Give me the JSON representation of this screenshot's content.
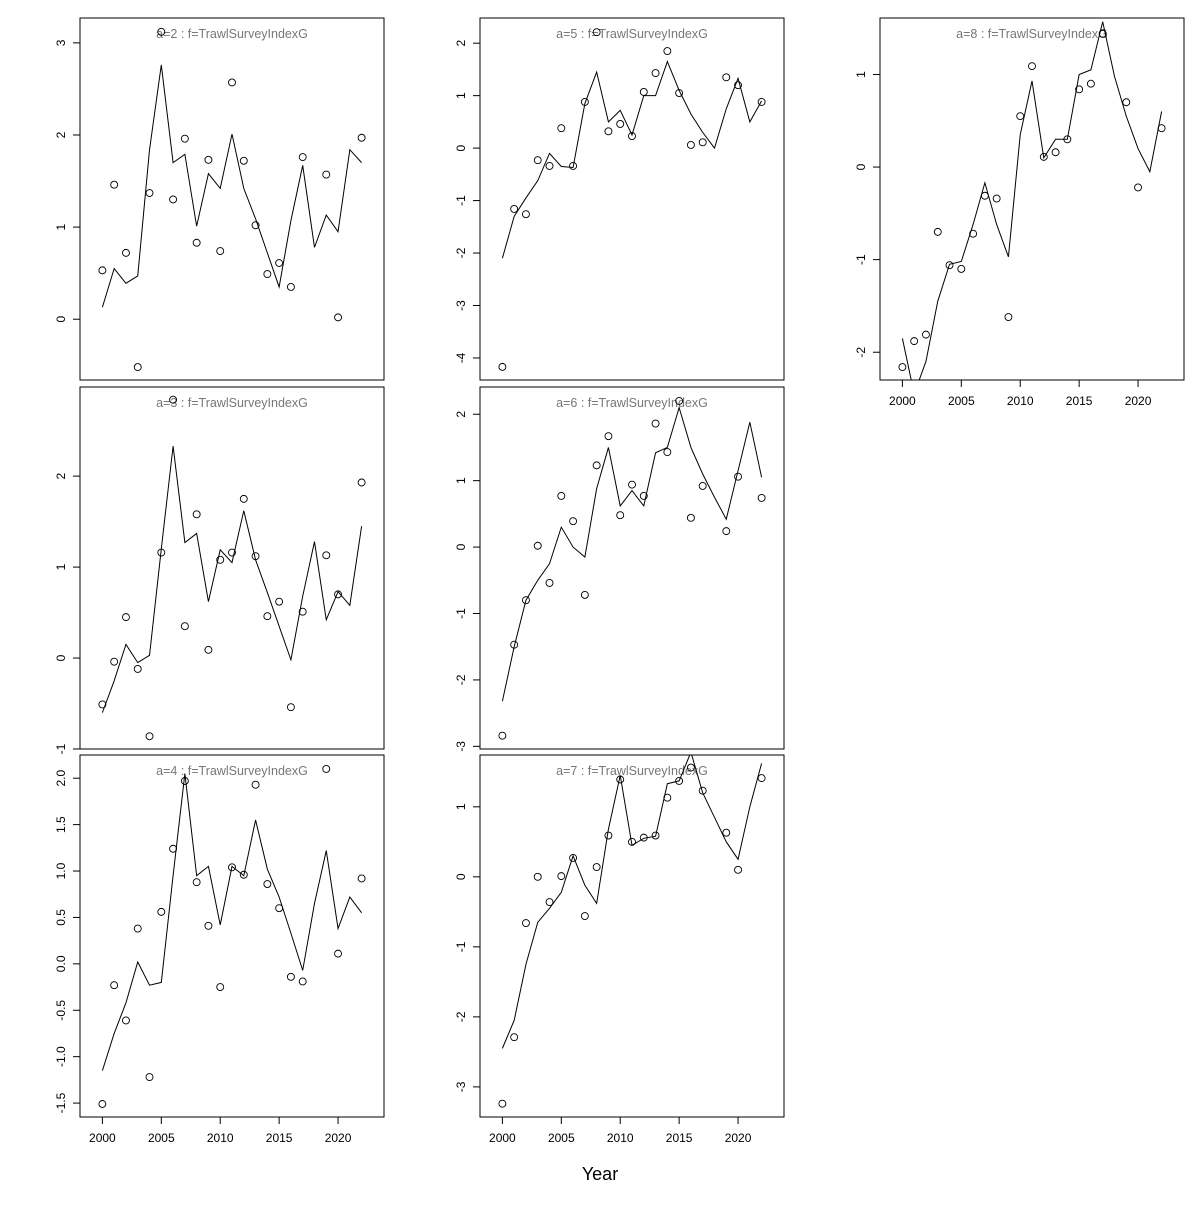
{
  "xlabel": "Year",
  "chart_data": [
    {
      "type": "line",
      "title": "a=2  :  f=TrawlSurveyIndexG",
      "color": "#000000",
      "x": [
        2000,
        2001,
        2002,
        2003,
        2004,
        2005,
        2006,
        2007,
        2008,
        2009,
        2010,
        2011,
        2012,
        2013,
        2014,
        2015,
        2016,
        2017,
        2018,
        2019,
        2020,
        2021,
        2022
      ],
      "series": [
        {
          "style": "points",
          "values": [
            0.53,
            1.46,
            0.72,
            -0.52,
            1.37,
            3.12,
            1.3,
            1.96,
            0.83,
            1.73,
            0.74,
            2.57,
            1.72,
            1.02,
            0.49,
            0.61,
            0.35,
            1.76,
            null,
            1.57,
            0.02,
            null,
            1.97
          ]
        },
        {
          "style": "line",
          "values": [
            0.13,
            0.55,
            0.39,
            0.47,
            1.84,
            2.76,
            1.7,
            1.79,
            1.01,
            1.58,
            1.42,
            2.01,
            1.42,
            1.09,
            0.72,
            0.35,
            1.07,
            1.67,
            0.78,
            1.13,
            0.95,
            1.84,
            1.7
          ]
        }
      ],
      "xlim": [
        1998.1,
        2023.9
      ],
      "ylim": [
        -0.66,
        3.27
      ],
      "yticks": [
        0,
        1,
        2,
        3
      ]
    },
    {
      "type": "line",
      "title": "a=3  :  f=TrawlSurveyIndexG",
      "color": "#000000",
      "x": [
        2000,
        2001,
        2002,
        2003,
        2004,
        2005,
        2006,
        2007,
        2008,
        2009,
        2010,
        2011,
        2012,
        2013,
        2014,
        2015,
        2016,
        2017,
        2018,
        2019,
        2020,
        2021,
        2022
      ],
      "series": [
        {
          "style": "points",
          "values": [
            -0.51,
            -0.04,
            0.45,
            -0.12,
            -0.86,
            1.16,
            2.84,
            0.35,
            1.58,
            0.09,
            1.08,
            1.16,
            1.75,
            1.12,
            0.46,
            0.62,
            -0.54,
            0.51,
            null,
            1.13,
            0.7,
            null,
            1.93
          ]
        },
        {
          "style": "line",
          "values": [
            -0.6,
            -0.25,
            0.15,
            -0.05,
            0.03,
            1.2,
            2.33,
            1.27,
            1.37,
            0.62,
            1.19,
            1.05,
            1.62,
            1.08,
            0.72,
            0.35,
            -0.02,
            0.68,
            1.28,
            0.42,
            0.73,
            0.58,
            1.45
          ]
        }
      ],
      "xlim": [
        1998.1,
        2023.9
      ],
      "ylim": [
        -1.0,
        2.98
      ],
      "yticks": [
        -1,
        0,
        1,
        2
      ]
    },
    {
      "type": "line",
      "title": "a=4  :  f=TrawlSurveyIndexG",
      "color": "#000000",
      "x": [
        2000,
        2001,
        2002,
        2003,
        2004,
        2005,
        2006,
        2007,
        2008,
        2009,
        2010,
        2011,
        2012,
        2013,
        2014,
        2015,
        2016,
        2017,
        2018,
        2019,
        2020,
        2021,
        2022
      ],
      "series": [
        {
          "style": "points",
          "values": [
            -1.51,
            -0.23,
            -0.61,
            0.38,
            -1.22,
            0.56,
            1.24,
            1.97,
            0.88,
            0.41,
            -0.25,
            1.04,
            0.96,
            1.93,
            0.86,
            0.6,
            -0.14,
            -0.19,
            null,
            2.1,
            0.11,
            null,
            0.92
          ]
        },
        {
          "style": "line",
          "values": [
            -1.15,
            -0.75,
            -0.42,
            0.02,
            -0.23,
            -0.2,
            0.95,
            2.05,
            0.95,
            1.05,
            0.42,
            1.05,
            0.95,
            1.55,
            1.02,
            0.72,
            0.33,
            -0.07,
            0.65,
            1.22,
            0.38,
            0.72,
            0.55
          ]
        }
      ],
      "xlim": [
        1998.1,
        2023.9
      ],
      "ylim": [
        -1.65,
        2.25
      ],
      "yticks": [
        -1.5,
        {
          "value": -1,
          "label": "-1.0"
        },
        -0.5,
        {
          "value": 0,
          "label": "0.0"
        },
        0.5,
        {
          "value": 1,
          "label": "1.0"
        },
        1.5,
        {
          "value": 2,
          "label": "2.0"
        }
      ],
      "xticks": [
        2000,
        2005,
        2010,
        2015,
        2020
      ]
    },
    {
      "type": "line",
      "title": "a=5  :  f=TrawlSurveyIndexG",
      "color": "#000000",
      "x": [
        2000,
        2001,
        2002,
        2003,
        2004,
        2005,
        2006,
        2007,
        2008,
        2009,
        2010,
        2011,
        2012,
        2013,
        2014,
        2015,
        2016,
        2017,
        2018,
        2019,
        2020,
        2021,
        2022
      ],
      "series": [
        {
          "style": "points",
          "values": [
            -4.17,
            -1.16,
            -1.26,
            -0.23,
            -0.34,
            0.38,
            -0.34,
            0.88,
            2.21,
            0.32,
            0.46,
            0.23,
            1.07,
            1.43,
            1.85,
            1.05,
            0.06,
            0.11,
            null,
            1.35,
            1.2,
            null,
            0.88
          ]
        },
        {
          "style": "line",
          "values": [
            -2.1,
            -1.3,
            -0.95,
            -0.62,
            -0.1,
            -0.35,
            -0.37,
            0.85,
            1.45,
            0.5,
            0.72,
            0.25,
            1.0,
            1.0,
            1.65,
            1.1,
            0.65,
            0.3,
            0.0,
            0.75,
            1.33,
            0.5,
            0.9
          ]
        }
      ],
      "xlim": [
        1998.1,
        2023.9
      ],
      "ylim": [
        -4.42,
        2.48
      ],
      "yticks": [
        -4,
        -3,
        -2,
        -1,
        0,
        1,
        2
      ]
    },
    {
      "type": "line",
      "title": "a=6  :  f=TrawlSurveyIndexG",
      "color": "#000000",
      "x": [
        2000,
        2001,
        2002,
        2003,
        2004,
        2005,
        2006,
        2007,
        2008,
        2009,
        2010,
        2011,
        2012,
        2013,
        2014,
        2015,
        2016,
        2017,
        2018,
        2019,
        2020,
        2021,
        2022
      ],
      "series": [
        {
          "style": "points",
          "values": [
            -2.84,
            -1.47,
            -0.8,
            0.02,
            -0.54,
            0.77,
            0.39,
            -0.72,
            1.23,
            1.67,
            0.48,
            0.94,
            0.77,
            1.86,
            1.43,
            2.2,
            0.44,
            0.92,
            null,
            0.24,
            1.06,
            null,
            0.74
          ]
        },
        {
          "style": "line",
          "values": [
            -2.32,
            -1.5,
            -0.8,
            -0.5,
            -0.25,
            0.3,
            0.0,
            -0.15,
            0.88,
            1.5,
            0.62,
            0.85,
            0.62,
            1.42,
            1.5,
            2.1,
            1.5,
            1.1,
            0.75,
            0.42,
            1.15,
            1.88,
            1.05
          ]
        }
      ],
      "xlim": [
        1998.1,
        2023.9
      ],
      "ylim": [
        -3.04,
        2.41
      ],
      "yticks": [
        -3,
        -2,
        -1,
        0,
        1,
        2
      ]
    },
    {
      "type": "line",
      "title": "a=7  :  f=TrawlSurveyIndexG",
      "color": "#000000",
      "x": [
        2000,
        2001,
        2002,
        2003,
        2004,
        2005,
        2006,
        2007,
        2008,
        2009,
        2010,
        2011,
        2012,
        2013,
        2014,
        2015,
        2016,
        2017,
        2018,
        2019,
        2020,
        2021,
        2022
      ],
      "series": [
        {
          "style": "points",
          "values": [
            -3.24,
            -2.29,
            -0.66,
            0.0,
            -0.36,
            0.01,
            0.27,
            -0.56,
            0.14,
            0.59,
            1.39,
            0.5,
            0.56,
            0.59,
            1.13,
            1.37,
            1.56,
            1.23,
            null,
            0.63,
            0.1,
            null,
            1.41
          ]
        },
        {
          "style": "line",
          "values": [
            -2.45,
            -2.05,
            -1.25,
            -0.65,
            -0.45,
            -0.22,
            0.3,
            -0.12,
            -0.38,
            0.68,
            1.45,
            0.45,
            0.55,
            0.58,
            1.33,
            1.37,
            1.78,
            1.2,
            0.85,
            0.5,
            0.25,
            1.0,
            1.62
          ]
        }
      ],
      "xlim": [
        1998.1,
        2023.9
      ],
      "ylim": [
        -3.43,
        1.74
      ],
      "yticks": [
        -3,
        -2,
        -1,
        0,
        1
      ],
      "xticks": [
        2000,
        2005,
        2010,
        2015,
        2020
      ]
    },
    {
      "type": "line",
      "title": "a=8  :  f=TrawlSurveyIndexG",
      "color": "#000000",
      "x": [
        2000,
        2001,
        2002,
        2003,
        2004,
        2005,
        2006,
        2007,
        2008,
        2009,
        2010,
        2011,
        2012,
        2013,
        2014,
        2015,
        2016,
        2017,
        2018,
        2019,
        2020,
        2021,
        2022
      ],
      "series": [
        {
          "style": "points",
          "values": [
            -2.16,
            -1.88,
            -1.81,
            -0.7,
            -1.06,
            -1.1,
            -0.72,
            -0.31,
            -0.34,
            -1.62,
            0.55,
            1.09,
            0.11,
            0.16,
            0.3,
            0.84,
            0.9,
            1.44,
            null,
            0.7,
            -0.22,
            null,
            0.42
          ]
        },
        {
          "style": "line",
          "values": [
            -1.85,
            -2.45,
            -2.1,
            -1.45,
            -1.05,
            -1.02,
            -0.62,
            -0.17,
            -0.62,
            -0.97,
            0.35,
            0.93,
            0.1,
            0.3,
            0.3,
            1.0,
            1.05,
            1.57,
            0.98,
            0.55,
            0.2,
            -0.05,
            0.6
          ]
        }
      ],
      "xlim": [
        1998.1,
        2023.9
      ],
      "ylim": [
        -2.3,
        1.61
      ],
      "yticks": [
        -2,
        -1,
        0,
        1
      ],
      "xticks": [
        2000,
        2005,
        2010,
        2015,
        2020
      ]
    }
  ]
}
